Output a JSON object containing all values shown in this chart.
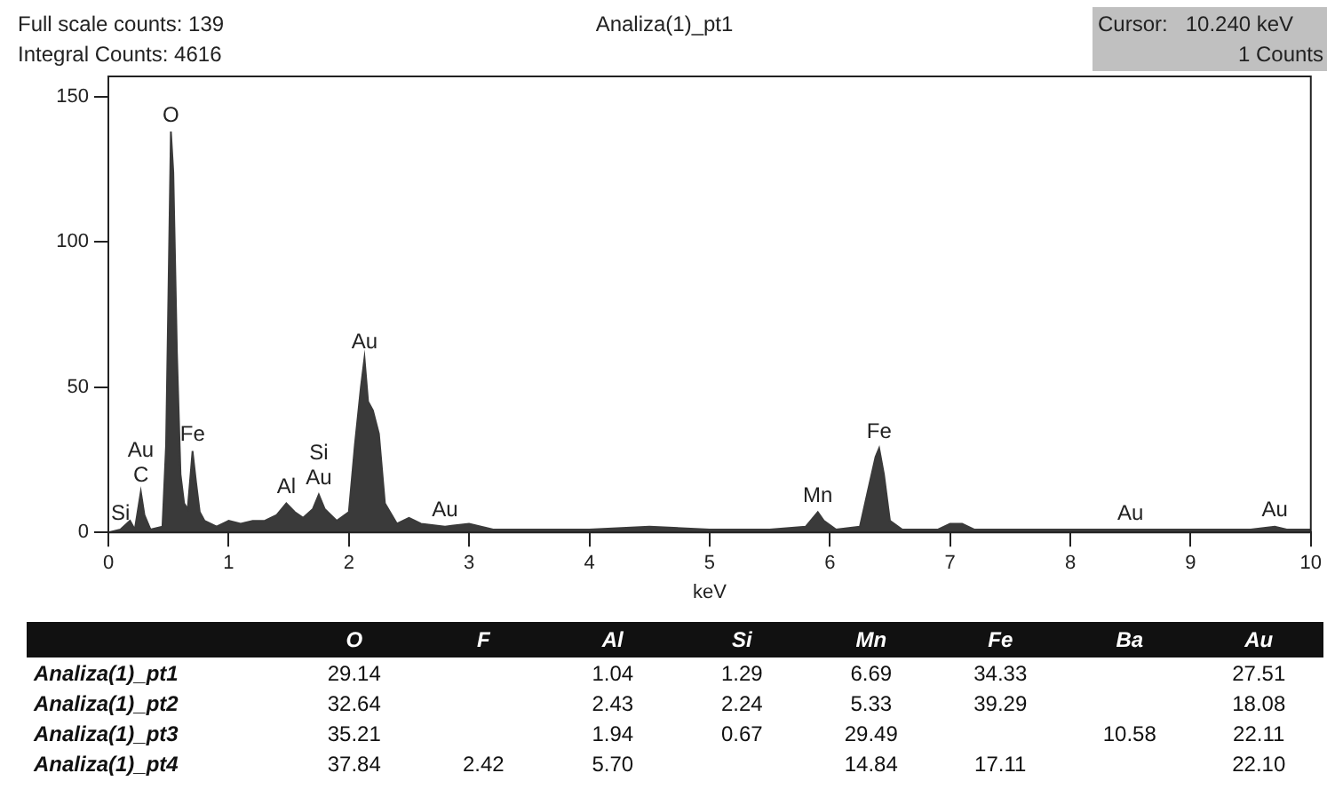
{
  "chart_data": [
    {
      "type": "area",
      "title": "Analiza(1)_pt1",
      "xlabel": "keV",
      "x": [
        0,
        0.1,
        0.18,
        0.22,
        0.27,
        0.3,
        0.35,
        0.45,
        0.48,
        0.5,
        0.52,
        0.54,
        0.57,
        0.6,
        0.63,
        0.66,
        0.7,
        0.73,
        0.76,
        0.8,
        0.9,
        1.0,
        1.1,
        1.2,
        1.3,
        1.4,
        1.48,
        1.55,
        1.62,
        1.7,
        1.75,
        1.8,
        1.9,
        2.0,
        2.05,
        2.1,
        2.13,
        2.16,
        2.2,
        2.25,
        2.3,
        2.4,
        2.5,
        2.6,
        2.8,
        3.0,
        3.2,
        3.5,
        4.0,
        4.5,
        5.0,
        5.5,
        5.8,
        5.9,
        5.95,
        6.05,
        6.25,
        6.32,
        6.38,
        6.41,
        6.45,
        6.5,
        6.6,
        6.9,
        7.0,
        7.1,
        7.2,
        7.5,
        8.0,
        8.5,
        9.0,
        9.5,
        9.7,
        9.8,
        10
      ],
      "series": [
        {
          "color": "#3a3a3a",
          "values": [
            0,
            1,
            4,
            1,
            14,
            6,
            1,
            2,
            30,
            83,
            138,
            124,
            62,
            20,
            10,
            8,
            28,
            17,
            7,
            4,
            2,
            4,
            3,
            4,
            4,
            6,
            10,
            7,
            5,
            8,
            13,
            8,
            4,
            7,
            30,
            50,
            60,
            45,
            42,
            34,
            10,
            3,
            5,
            3,
            2,
            3,
            1,
            1,
            1,
            2,
            1,
            1,
            2,
            7,
            4,
            1,
            2,
            15,
            26,
            29,
            20,
            4,
            1,
            1,
            3,
            3,
            1,
            1,
            1,
            1,
            1,
            1,
            2,
            1,
            1
          ]
        }
      ],
      "xlim": [
        0,
        10
      ],
      "xticks": [
        0,
        1,
        2,
        3,
        4,
        5,
        6,
        7,
        8,
        9,
        10
      ],
      "ylim": [
        0,
        157
      ],
      "yticks": [
        0,
        50,
        100,
        150
      ],
      "annotations": [
        "Full scale counts: 139",
        "Integral Counts: 4616",
        "Cursor:   10.240 keV",
        "1 Counts",
        {
          "text": "Si",
          "x": 0.1,
          "y": 1
        },
        {
          "text": "C",
          "x": 0.27,
          "y": 14
        },
        {
          "text": "Au",
          "x": 0.27,
          "y": 14
        },
        {
          "text": "O",
          "x": 0.52,
          "y": 138
        },
        {
          "text": "Fe",
          "x": 0.7,
          "y": 28
        },
        {
          "text": "Al",
          "x": 1.48,
          "y": 10
        },
        {
          "text": "Au",
          "x": 1.75,
          "y": 13
        },
        {
          "text": "Si",
          "x": 1.75,
          "y": 13
        },
        {
          "text": "Au",
          "x": 2.13,
          "y": 60
        },
        {
          "text": "Au",
          "x": 2.8,
          "y": 2
        },
        {
          "text": "Mn",
          "x": 5.9,
          "y": 7
        },
        {
          "text": "Fe",
          "x": 6.41,
          "y": 29
        },
        {
          "text": "Au",
          "x": 8.5,
          "y": 1
        },
        {
          "text": "Au",
          "x": 9.7,
          "y": 2
        }
      ]
    },
    {
      "type": "heatmap",
      "categories": [
        "O",
        "F",
        "Al",
        "Si",
        "Mn",
        "Fe",
        "Ba",
        "Au"
      ],
      "y_categories": [
        "Analiza(1)_pt1",
        "Analiza(1)_pt2",
        "Analiza(1)_pt3",
        "Analiza(1)_pt4"
      ],
      "cells": [
        [
          29.14,
          null,
          1.04,
          1.29,
          6.69,
          34.33,
          null,
          27.51
        ],
        [
          32.64,
          null,
          2.43,
          2.24,
          5.33,
          39.29,
          null,
          18.08
        ],
        [
          35.21,
          null,
          1.94,
          0.67,
          29.49,
          null,
          10.58,
          22.11
        ],
        [
          37.84,
          2.42,
          5.7,
          null,
          14.84,
          17.11,
          null,
          22.1
        ]
      ],
      "cell_labels": [
        [
          "29.14",
          null,
          "1.04",
          "1.29",
          "6.69",
          "34.33",
          null,
          "27.51"
        ],
        [
          "32.64",
          null,
          "2.43",
          "2.24",
          "5.33",
          "39.29",
          null,
          "18.08"
        ],
        [
          "35.21",
          null,
          "1.94",
          "0.67",
          "29.49",
          null,
          "10.58",
          "22.11"
        ],
        [
          "37.84",
          "2.42",
          "5.70",
          null,
          "14.84",
          "17.11",
          null,
          "22.10"
        ]
      ]
    }
  ]
}
